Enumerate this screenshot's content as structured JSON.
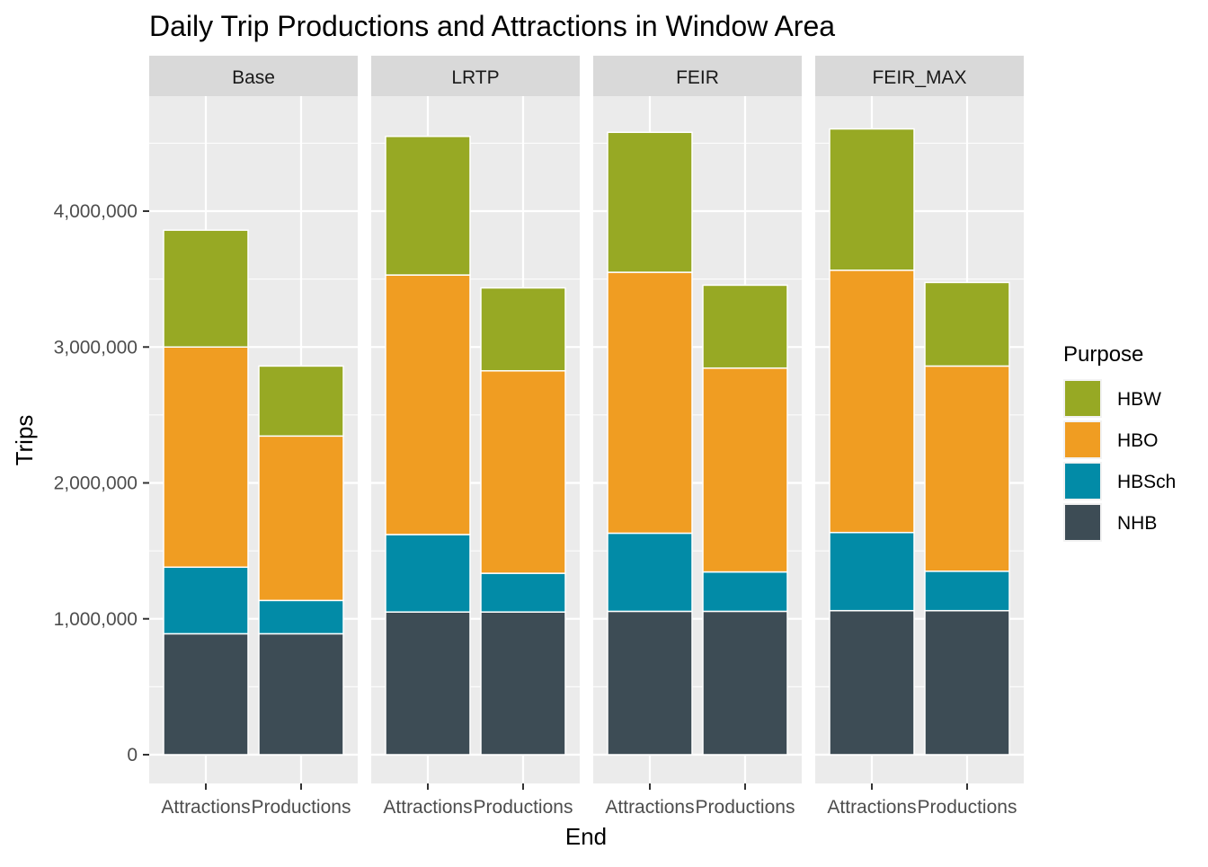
{
  "chart_data": {
    "type": "bar",
    "stacked": true,
    "faceted": true,
    "title": "Daily Trip Productions and Attractions in Window Area",
    "xlabel": "End",
    "ylabel": "Trips",
    "ylim": [
      0,
      4850000
    ],
    "yticks": [
      0,
      1000000,
      2000000,
      3000000,
      4000000
    ],
    "ytick_labels": [
      "0",
      "1,000,000",
      "2,000,000",
      "3,000,000",
      "4,000,000"
    ],
    "categories": [
      "Attractions",
      "Productions"
    ],
    "legend": {
      "title": "Purpose",
      "position": "right",
      "items": [
        {
          "name": "HBW",
          "color": "#97A924"
        },
        {
          "name": "HBO",
          "color": "#F09D22"
        },
        {
          "name": "HBSch",
          "color": "#028BA7"
        },
        {
          "name": "NHB",
          "color": "#3D4C55"
        }
      ]
    },
    "stack_order_bottom_to_top": [
      "NHB",
      "HBSch",
      "HBO",
      "HBW"
    ],
    "facets": [
      {
        "name": "Base",
        "bars": [
          {
            "category": "Attractions",
            "NHB": 890000,
            "HBSch": 490000,
            "HBO": 1620000,
            "HBW": 860000
          },
          {
            "category": "Productions",
            "NHB": 890000,
            "HBSch": 245000,
            "HBO": 1210000,
            "HBW": 515000
          }
        ]
      },
      {
        "name": "LRTP",
        "bars": [
          {
            "category": "Attractions",
            "NHB": 1050000,
            "HBSch": 570000,
            "HBO": 1910000,
            "HBW": 1020000
          },
          {
            "category": "Productions",
            "NHB": 1050000,
            "HBSch": 285000,
            "HBO": 1490000,
            "HBW": 610000
          }
        ]
      },
      {
        "name": "FEIR",
        "bars": [
          {
            "category": "Attractions",
            "NHB": 1055000,
            "HBSch": 575000,
            "HBO": 1920000,
            "HBW": 1030000
          },
          {
            "category": "Productions",
            "NHB": 1055000,
            "HBSch": 290000,
            "HBO": 1500000,
            "HBW": 610000
          }
        ]
      },
      {
        "name": "FEIR_MAX",
        "bars": [
          {
            "category": "Attractions",
            "NHB": 1060000,
            "HBSch": 575000,
            "HBO": 1930000,
            "HBW": 1040000
          },
          {
            "category": "Productions",
            "NHB": 1060000,
            "HBSch": 290000,
            "HBO": 1510000,
            "HBW": 615000
          }
        ]
      }
    ]
  }
}
